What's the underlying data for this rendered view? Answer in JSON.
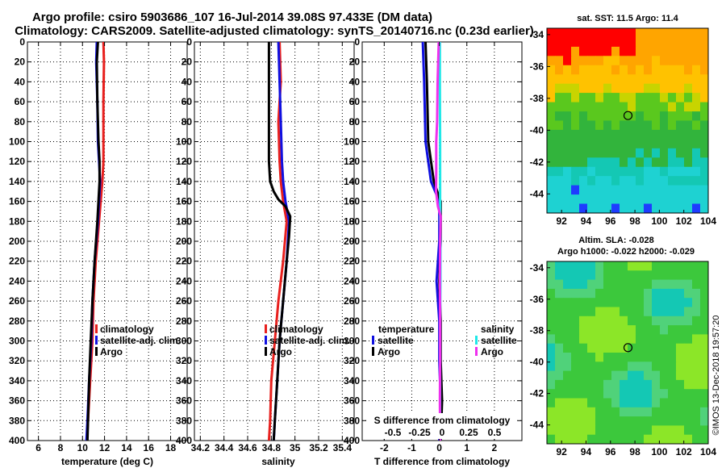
{
  "header": {
    "line1": "Argo profile: csiro 5903686_107 16-Jul-2014 39.08S 97.433E (DM data)",
    "line2": "Climatology: CARS2009. Satellite-adjusted climatology: synTS_20140716.nc (0.23d earlier)"
  },
  "depth_axis": {
    "ticks": [
      0,
      20,
      40,
      60,
      80,
      100,
      120,
      140,
      160,
      180,
      200,
      220,
      240,
      260,
      280,
      300,
      320,
      340,
      360,
      380,
      400
    ],
    "range": [
      0,
      400
    ]
  },
  "colors": {
    "climatology": "#e8201e",
    "satellite": "#1010e0",
    "argo": "#000000",
    "sat_salinity": "#20e8e8",
    "argo_salinity": "#ee30ee"
  },
  "chart_data": [
    {
      "type": "line",
      "name": "temperature-panel",
      "xlabel": "temperature (deg C)",
      "ylabel": "depth",
      "xlim": [
        5,
        19.5
      ],
      "ylim": [
        400,
        0
      ],
      "xticks": [
        6,
        8,
        10,
        12,
        14,
        16,
        18
      ],
      "legend": [
        "climatology",
        "satellite-adj. clim.",
        "Argo"
      ],
      "series": [
        {
          "name": "climatology",
          "key": "climatology",
          "points": [
            [
              11.9,
              0
            ],
            [
              11.95,
              20
            ],
            [
              11.9,
              60
            ],
            [
              11.9,
              120
            ],
            [
              11.8,
              140
            ],
            [
              11.5,
              180
            ],
            [
              11.2,
              220
            ],
            [
              11.0,
              260
            ],
            [
              10.9,
              300
            ],
            [
              10.7,
              340
            ],
            [
              10.5,
              380
            ],
            [
              10.4,
              400
            ]
          ]
        },
        {
          "name": "satellite-adj. clim.",
          "key": "satellite",
          "points": [
            [
              11.3,
              0
            ],
            [
              11.25,
              20
            ],
            [
              11.35,
              60
            ],
            [
              11.4,
              100
            ],
            [
              11.5,
              120
            ],
            [
              11.6,
              140
            ],
            [
              11.4,
              180
            ],
            [
              11.1,
              220
            ],
            [
              10.9,
              260
            ],
            [
              10.8,
              300
            ],
            [
              10.6,
              340
            ],
            [
              10.45,
              380
            ],
            [
              10.35,
              400
            ]
          ]
        },
        {
          "name": "Argo",
          "key": "argo",
          "points": [
            [
              11.4,
              0
            ],
            [
              11.3,
              20
            ],
            [
              11.35,
              60
            ],
            [
              11.45,
              100
            ],
            [
              11.55,
              120
            ],
            [
              11.55,
              140
            ],
            [
              11.35,
              180
            ],
            [
              11.1,
              220
            ],
            [
              10.9,
              260
            ],
            [
              10.75,
              300
            ],
            [
              10.6,
              340
            ],
            [
              10.5,
              380
            ],
            [
              10.45,
              400
            ]
          ]
        }
      ]
    },
    {
      "type": "line",
      "name": "salinity-panel",
      "xlabel": "salinity",
      "ylabel": "depth",
      "xlim": [
        34.15,
        35.5
      ],
      "ylim": [
        400,
        0
      ],
      "xticks": [
        34.2,
        34.4,
        34.6,
        34.8,
        35,
        35.2,
        35.4
      ],
      "xtick_labels": [
        "34.2",
        "34.4",
        "34.6",
        "34.8",
        "35",
        "35.2",
        "35.4"
      ],
      "legend": [
        "climatology",
        "satellite-adj. clim.",
        "Argo"
      ],
      "series": [
        {
          "name": "climatology",
          "key": "climatology",
          "points": [
            [
              34.87,
              0
            ],
            [
              34.88,
              40
            ],
            [
              34.86,
              80
            ],
            [
              34.87,
              120
            ],
            [
              34.88,
              140
            ],
            [
              34.9,
              160
            ],
            [
              34.93,
              180
            ],
            [
              34.9,
              220
            ],
            [
              34.86,
              260
            ],
            [
              34.83,
              300
            ],
            [
              34.8,
              340
            ],
            [
              34.79,
              380
            ],
            [
              34.78,
              400
            ]
          ]
        },
        {
          "name": "satellite-adj. clim.",
          "key": "satellite",
          "points": [
            [
              34.86,
              0
            ],
            [
              34.87,
              40
            ],
            [
              34.88,
              80
            ],
            [
              34.89,
              120
            ],
            [
              34.9,
              140
            ],
            [
              34.92,
              160
            ],
            [
              34.95,
              180
            ],
            [
              34.93,
              220
            ],
            [
              34.9,
              260
            ],
            [
              34.87,
              300
            ],
            [
              34.85,
              340
            ],
            [
              34.83,
              380
            ],
            [
              34.82,
              400
            ]
          ]
        },
        {
          "name": "Argo",
          "key": "argo",
          "points": [
            [
              34.78,
              0
            ],
            [
              34.78,
              60
            ],
            [
              34.78,
              100
            ],
            [
              34.78,
              120
            ],
            [
              34.79,
              140
            ],
            [
              34.82,
              150
            ],
            [
              34.86,
              158
            ],
            [
              34.92,
              165
            ],
            [
              34.96,
              175
            ],
            [
              34.95,
              195
            ],
            [
              34.93,
              220
            ],
            [
              34.9,
              260
            ],
            [
              34.87,
              300
            ],
            [
              34.85,
              340
            ],
            [
              34.83,
              380
            ],
            [
              34.82,
              400
            ]
          ]
        }
      ]
    },
    {
      "type": "line",
      "name": "difference-panel",
      "xlabel": "T difference from climatology",
      "xlabel_top": "S difference from climatology",
      "ylabel": "depth",
      "xlim": [
        -2.8,
        3.0
      ],
      "ylim": [
        400,
        0
      ],
      "xticks": [
        -2,
        -1,
        0,
        1,
        2
      ],
      "xticks_top": [
        "-0.5",
        "-0.25",
        "0",
        "0.25",
        "0.5"
      ],
      "legend_temperature_title": "temperature",
      "legend_salinity_title": "salinity",
      "legend": [
        "satellite",
        "Argo",
        "satellite",
        "Argo"
      ],
      "series": [
        {
          "name": "T satellite",
          "key": "satellite",
          "points": [
            [
              -0.6,
              0
            ],
            [
              -0.55,
              40
            ],
            [
              -0.5,
              100
            ],
            [
              -0.3,
              140
            ],
            [
              0,
              160
            ],
            [
              0,
              200
            ],
            [
              -0.1,
              240
            ],
            [
              0,
              280
            ],
            [
              0,
              320
            ],
            [
              0.05,
              360
            ],
            [
              0,
              400
            ]
          ]
        },
        {
          "name": "T Argo",
          "key": "argo",
          "points": [
            [
              -0.5,
              0
            ],
            [
              -0.45,
              40
            ],
            [
              -0.4,
              100
            ],
            [
              -0.2,
              140
            ],
            [
              0.05,
              160
            ],
            [
              0.05,
              200
            ],
            [
              0,
              240
            ],
            [
              0.05,
              280
            ],
            [
              0.05,
              320
            ],
            [
              0.1,
              360
            ],
            [
              0.05,
              400
            ]
          ]
        },
        {
          "name": "S satellite",
          "key": "sat_salinity",
          "points": [
            [
              0.02,
              0
            ],
            [
              0.02,
              40
            ],
            [
              0.03,
              100
            ],
            [
              0.03,
              140
            ],
            [
              0.03,
              160
            ],
            [
              0.04,
              200
            ],
            [
              0.04,
              240
            ],
            [
              0.03,
              280
            ],
            [
              0.03,
              320
            ],
            [
              0.03,
              360
            ],
            [
              0.03,
              400
            ]
          ]
        },
        {
          "name": "S Argo",
          "key": "argo_salinity",
          "points": [
            [
              -0.02,
              0
            ],
            [
              -0.06,
              40
            ],
            [
              -0.08,
              80
            ],
            [
              -0.11,
              100
            ],
            [
              -0.11,
              130
            ],
            [
              -0.12,
              150
            ],
            [
              -0.05,
              165
            ],
            [
              0.05,
              175
            ],
            [
              0.03,
              200
            ],
            [
              0.02,
              240
            ],
            [
              0.03,
              280
            ],
            [
              0.03,
              320
            ],
            [
              0.02,
              360
            ],
            [
              0.03,
              400
            ]
          ]
        }
      ]
    },
    {
      "type": "heatmap",
      "name": "sst-map",
      "title": "sat. SST: 11.5 Argo: 11.4",
      "xticks": [
        92,
        94,
        96,
        98,
        100,
        102,
        104
      ],
      "yticks": [
        -34,
        -36,
        -38,
        -40,
        -42,
        -44
      ],
      "xlim": [
        90.8,
        104
      ],
      "ylim": [
        -45.2,
        -33.6
      ],
      "marker": [
        97.43,
        -39.08
      ]
    },
    {
      "type": "heatmap",
      "name": "sla-map",
      "title_line1": "Altim. SLA: -0.028",
      "title_line2": "Argo h1000: -0.022 h2000: -0.029",
      "xticks": [
        92,
        94,
        96,
        98,
        100,
        102,
        104
      ],
      "yticks": [
        -34,
        -36,
        -38,
        -40,
        -42,
        -44
      ],
      "xlim": [
        90.8,
        104
      ],
      "ylim": [
        -45.2,
        -33.6
      ],
      "marker": [
        97.43,
        -39.08
      ]
    }
  ],
  "footer": {
    "credit": "©IMOS 13-Dec-2018 19:57:20"
  }
}
